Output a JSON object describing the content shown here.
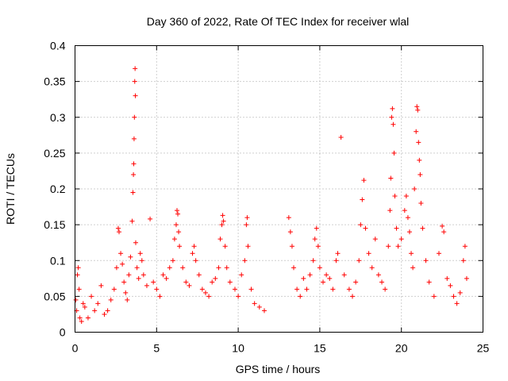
{
  "chart_data": {
    "type": "scatter",
    "title": "Day 360 of 2022, Rate Of TEC Index for receiver wlal",
    "xlabel": "GPS time / hours",
    "ylabel": "ROTI / TECUs",
    "xlim": [
      0,
      25
    ],
    "ylim": [
      0,
      0.4
    ],
    "x_ticks": [
      0,
      5,
      10,
      15,
      20,
      25
    ],
    "y_ticks": [
      0,
      0.05,
      0.1,
      0.15,
      0.2,
      0.25,
      0.3,
      0.35,
      0.4
    ],
    "x_tick_labels": [
      "0",
      "5",
      "10",
      "15",
      "20",
      "25"
    ],
    "y_tick_labels": [
      "0",
      "0.05",
      "0.1",
      "0.15",
      "0.2",
      "0.25",
      "0.3",
      "0.35",
      "0.4"
    ],
    "grid": true,
    "marker": "plus",
    "color": "#ff0000",
    "points": [
      [
        0.05,
        0.045
      ],
      [
        0.1,
        0.03
      ],
      [
        0.15,
        0.08
      ],
      [
        0.2,
        0.09
      ],
      [
        0.25,
        0.06
      ],
      [
        0.3,
        0.02
      ],
      [
        0.4,
        0.015
      ],
      [
        0.5,
        0.04
      ],
      [
        0.6,
        0.035
      ],
      [
        0.8,
        0.02
      ],
      [
        1.0,
        0.05
      ],
      [
        1.2,
        0.03
      ],
      [
        1.4,
        0.04
      ],
      [
        1.6,
        0.065
      ],
      [
        1.8,
        0.025
      ],
      [
        2.0,
        0.03
      ],
      [
        2.2,
        0.045
      ],
      [
        2.4,
        0.06
      ],
      [
        2.55,
        0.09
      ],
      [
        2.65,
        0.145
      ],
      [
        2.7,
        0.14
      ],
      [
        2.8,
        0.11
      ],
      [
        2.9,
        0.095
      ],
      [
        3.0,
        0.07
      ],
      [
        3.1,
        0.055
      ],
      [
        3.2,
        0.045
      ],
      [
        3.3,
        0.08
      ],
      [
        3.4,
        0.105
      ],
      [
        3.5,
        0.155
      ],
      [
        3.55,
        0.195
      ],
      [
        3.58,
        0.22
      ],
      [
        3.6,
        0.235
      ],
      [
        3.62,
        0.27
      ],
      [
        3.64,
        0.3
      ],
      [
        3.66,
        0.35
      ],
      [
        3.68,
        0.368
      ],
      [
        3.7,
        0.33
      ],
      [
        3.72,
        0.125
      ],
      [
        3.8,
        0.09
      ],
      [
        3.9,
        0.075
      ],
      [
        4.0,
        0.11
      ],
      [
        4.1,
        0.1
      ],
      [
        4.2,
        0.08
      ],
      [
        4.4,
        0.065
      ],
      [
        4.6,
        0.158
      ],
      [
        4.8,
        0.07
      ],
      [
        5.0,
        0.06
      ],
      [
        5.2,
        0.05
      ],
      [
        5.4,
        0.08
      ],
      [
        5.6,
        0.075
      ],
      [
        5.8,
        0.09
      ],
      [
        6.0,
        0.1
      ],
      [
        6.1,
        0.13
      ],
      [
        6.2,
        0.15
      ],
      [
        6.25,
        0.17
      ],
      [
        6.3,
        0.165
      ],
      [
        6.35,
        0.14
      ],
      [
        6.4,
        0.12
      ],
      [
        6.6,
        0.09
      ],
      [
        6.8,
        0.07
      ],
      [
        7.0,
        0.065
      ],
      [
        7.2,
        0.11
      ],
      [
        7.3,
        0.12
      ],
      [
        7.4,
        0.1
      ],
      [
        7.6,
        0.08
      ],
      [
        7.8,
        0.06
      ],
      [
        8.0,
        0.055
      ],
      [
        8.2,
        0.05
      ],
      [
        8.4,
        0.07
      ],
      [
        8.6,
        0.075
      ],
      [
        8.8,
        0.09
      ],
      [
        8.9,
        0.13
      ],
      [
        9.0,
        0.15
      ],
      [
        9.05,
        0.163
      ],
      [
        9.1,
        0.155
      ],
      [
        9.2,
        0.12
      ],
      [
        9.3,
        0.09
      ],
      [
        9.5,
        0.07
      ],
      [
        9.8,
        0.06
      ],
      [
        10.0,
        0.05
      ],
      [
        10.2,
        0.08
      ],
      [
        10.4,
        0.1
      ],
      [
        10.5,
        0.15
      ],
      [
        10.55,
        0.16
      ],
      [
        10.6,
        0.12
      ],
      [
        10.8,
        0.06
      ],
      [
        11.0,
        0.04
      ],
      [
        11.3,
        0.035
      ],
      [
        11.6,
        0.03
      ],
      [
        13.1,
        0.16
      ],
      [
        13.2,
        0.14
      ],
      [
        13.3,
        0.12
      ],
      [
        13.4,
        0.09
      ],
      [
        13.6,
        0.06
      ],
      [
        13.8,
        0.05
      ],
      [
        14.0,
        0.075
      ],
      [
        14.2,
        0.06
      ],
      [
        14.4,
        0.08
      ],
      [
        14.6,
        0.1
      ],
      [
        14.7,
        0.13
      ],
      [
        14.8,
        0.145
      ],
      [
        14.9,
        0.12
      ],
      [
        15.0,
        0.09
      ],
      [
        15.2,
        0.07
      ],
      [
        15.4,
        0.08
      ],
      [
        15.6,
        0.075
      ],
      [
        15.8,
        0.06
      ],
      [
        16.0,
        0.1
      ],
      [
        16.1,
        0.11
      ],
      [
        16.3,
        0.272
      ],
      [
        16.5,
        0.08
      ],
      [
        16.8,
        0.06
      ],
      [
        17.0,
        0.05
      ],
      [
        17.2,
        0.07
      ],
      [
        17.4,
        0.1
      ],
      [
        17.5,
        0.15
      ],
      [
        17.6,
        0.185
      ],
      [
        17.7,
        0.212
      ],
      [
        17.8,
        0.145
      ],
      [
        18.0,
        0.11
      ],
      [
        18.2,
        0.09
      ],
      [
        18.4,
        0.13
      ],
      [
        18.6,
        0.08
      ],
      [
        18.8,
        0.07
      ],
      [
        19.0,
        0.06
      ],
      [
        19.2,
        0.12
      ],
      [
        19.3,
        0.17
      ],
      [
        19.35,
        0.215
      ],
      [
        19.4,
        0.3
      ],
      [
        19.45,
        0.312
      ],
      [
        19.5,
        0.29
      ],
      [
        19.55,
        0.25
      ],
      [
        19.6,
        0.19
      ],
      [
        19.7,
        0.145
      ],
      [
        19.8,
        0.12
      ],
      [
        20.0,
        0.13
      ],
      [
        20.2,
        0.17
      ],
      [
        20.3,
        0.19
      ],
      [
        20.4,
        0.16
      ],
      [
        20.5,
        0.14
      ],
      [
        20.6,
        0.11
      ],
      [
        20.7,
        0.09
      ],
      [
        20.8,
        0.2
      ],
      [
        20.9,
        0.28
      ],
      [
        20.95,
        0.315
      ],
      [
        21.0,
        0.31
      ],
      [
        21.05,
        0.265
      ],
      [
        21.1,
        0.24
      ],
      [
        21.15,
        0.22
      ],
      [
        21.2,
        0.18
      ],
      [
        21.3,
        0.145
      ],
      [
        21.5,
        0.1
      ],
      [
        21.7,
        0.07
      ],
      [
        22.0,
        0.05
      ],
      [
        22.3,
        0.11
      ],
      [
        22.5,
        0.148
      ],
      [
        22.6,
        0.14
      ],
      [
        22.8,
        0.075
      ],
      [
        23.0,
        0.065
      ],
      [
        23.2,
        0.05
      ],
      [
        23.4,
        0.04
      ],
      [
        23.6,
        0.055
      ],
      [
        23.8,
        0.1
      ],
      [
        23.9,
        0.12
      ],
      [
        24.0,
        0.075
      ]
    ]
  }
}
